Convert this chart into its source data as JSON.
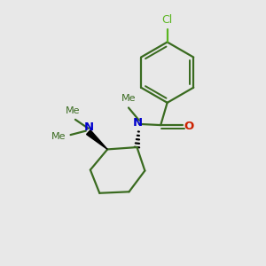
{
  "background_color": "#e8e8e8",
  "bond_color": "#3a6b20",
  "cl_color": "#5ab520",
  "n_color": "#0000cc",
  "o_color": "#cc2200",
  "line_width": 1.6,
  "fig_width": 3.0,
  "fig_height": 3.0,
  "dpi": 100,
  "xlim": [
    0,
    10
  ],
  "ylim": [
    0,
    10
  ]
}
